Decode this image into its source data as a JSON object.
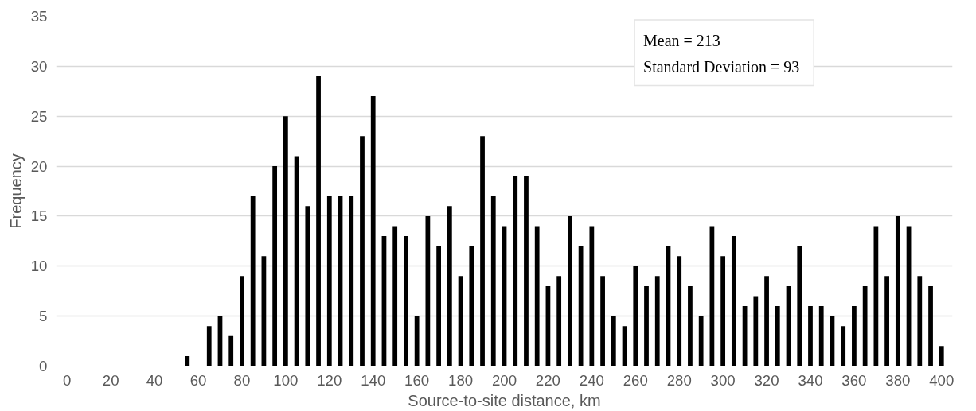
{
  "chart_data": {
    "type": "bar",
    "xlabel": "Source-to-site distance, km",
    "ylabel": "Frequency",
    "annotations": [
      "Mean = 213",
      "Standard Deviation = 93"
    ],
    "x": [
      0,
      5,
      10,
      15,
      20,
      25,
      30,
      35,
      40,
      45,
      50,
      55,
      60,
      65,
      70,
      75,
      80,
      85,
      90,
      95,
      100,
      105,
      110,
      115,
      120,
      125,
      130,
      135,
      140,
      145,
      150,
      155,
      160,
      165,
      170,
      175,
      180,
      185,
      190,
      195,
      200,
      205,
      210,
      215,
      220,
      225,
      230,
      235,
      240,
      245,
      250,
      255,
      260,
      265,
      270,
      275,
      280,
      285,
      290,
      295,
      300,
      305,
      310,
      315,
      320,
      325,
      330,
      335,
      340,
      345,
      350,
      355,
      360,
      365,
      370,
      375,
      380,
      385,
      390,
      395,
      400
    ],
    "values": [
      0,
      0,
      0,
      0,
      0,
      0,
      0,
      0,
      0,
      0,
      0,
      1,
      0,
      4,
      5,
      3,
      9,
      17,
      11,
      20,
      25,
      21,
      16,
      29,
      17,
      17,
      17,
      23,
      27,
      13,
      14,
      13,
      5,
      15,
      12,
      16,
      9,
      12,
      23,
      17,
      14,
      19,
      19,
      14,
      8,
      9,
      15,
      12,
      14,
      9,
      5,
      4,
      10,
      8,
      9,
      12,
      11,
      8,
      5,
      14,
      11,
      13,
      6,
      7,
      9,
      6,
      8,
      12,
      6,
      6,
      5,
      4,
      6,
      8,
      14,
      9,
      15,
      14,
      9,
      8,
      2
    ],
    "color": "#000000",
    "xlim": [
      -5,
      405
    ],
    "xticks": [
      0,
      20,
      40,
      60,
      80,
      100,
      120,
      140,
      160,
      180,
      200,
      220,
      240,
      260,
      280,
      300,
      320,
      340,
      360,
      380,
      400
    ],
    "ylim": [
      0,
      35
    ],
    "yticks": [
      0,
      5,
      10,
      15,
      20,
      25,
      30,
      35
    ],
    "grid": "y"
  }
}
